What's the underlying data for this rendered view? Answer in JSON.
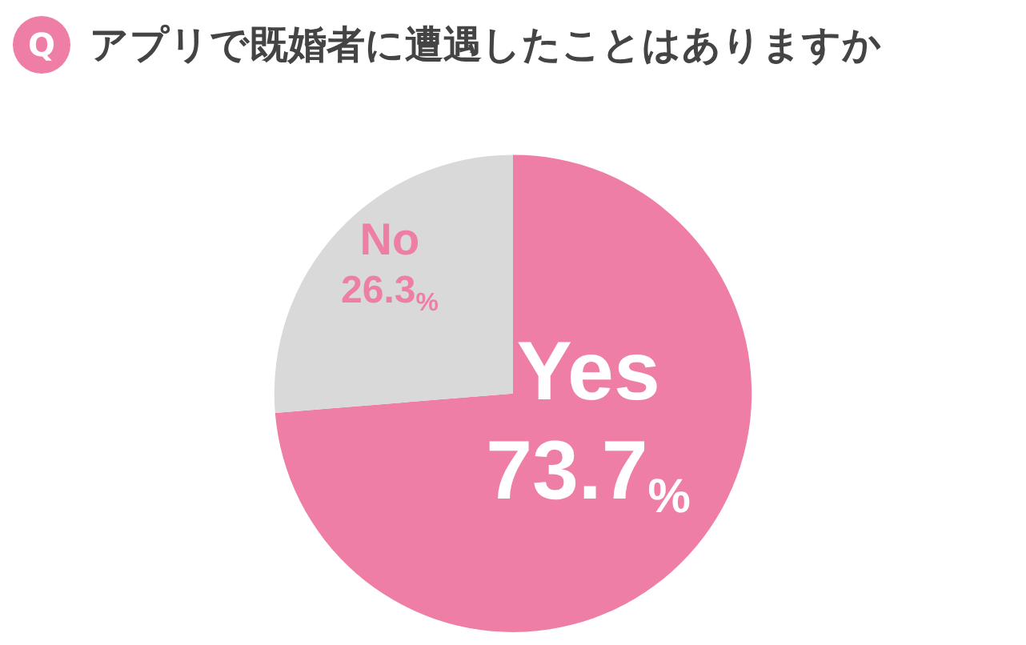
{
  "chart_data": {
    "type": "pie",
    "title": "アプリで既婚者に遭遇したことはありますか",
    "annotations": [
      "Q"
    ],
    "categories": [
      "Yes",
      "No"
    ],
    "values": [
      73.7,
      26.3
    ],
    "colors": [
      "#ee7ea6",
      "#d9d9d9"
    ],
    "value_labels": [
      "73.7%",
      "26.3%"
    ],
    "legend": false
  }
}
